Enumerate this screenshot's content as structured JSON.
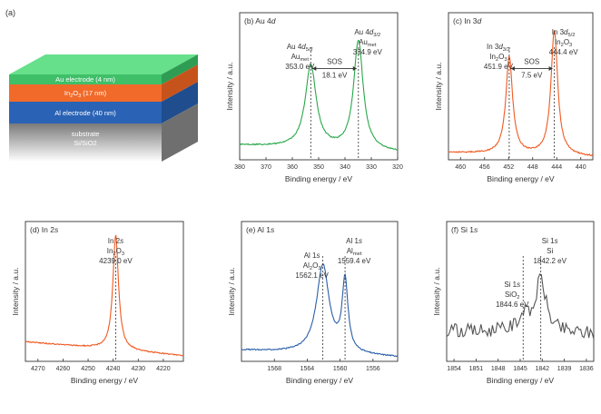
{
  "schematic": {
    "panel_label": "(a)",
    "layers": [
      {
        "label": "Au electrode (4 nm)",
        "front": "#3fbf68",
        "top": "#66e08a",
        "side": "#2e9c52"
      },
      {
        "label": "In2O3 (17 nm)",
        "label_main": "In",
        "label_sub": "2",
        "label_mid": "O",
        "label_sub2": "3",
        "label_tail": " (17 nm)",
        "front": "#f26a2a",
        "side": "#c7531c"
      },
      {
        "label": "Al electrode (40 nm)",
        "front": "#2a63b5",
        "side": "#1f4d8e"
      },
      {
        "label": "substrate",
        "label2": "Si/SiO2",
        "front": "#9a9a9a",
        "side": "#6f6f6f"
      }
    ]
  },
  "chart_data": [
    {
      "id": "b",
      "type": "line",
      "title": "(b) Au 4d",
      "xlabel": "Binding energy / eV",
      "ylabel": "Intensity / a.u.",
      "xlim": [
        380,
        320
      ],
      "ylim": [
        0,
        1
      ],
      "xticks": [
        380,
        370,
        360,
        350,
        340,
        330,
        320
      ],
      "color": "#2aa84a",
      "peaks": [
        [
          353.0,
          0.56,
          3.0
        ],
        [
          334.9,
          0.74,
          2.6
        ]
      ],
      "background": [
        0.1,
        0.05
      ],
      "markers": [
        {
          "x": 353.0,
          "lines": [
            "Au 4d5/2",
            "Aumet",
            "353.0 eV"
          ]
        },
        {
          "x": 334.9,
          "lines": [
            "Au 4d3/2",
            "Aumet",
            "334.9 eV"
          ]
        }
      ],
      "sos": {
        "label": "SOS",
        "value": "18.1 eV",
        "x1": 353.0,
        "x2": 334.9
      }
    },
    {
      "id": "c",
      "type": "line",
      "title": "(c) In 3d",
      "xlabel": "Binding energy / eV",
      "ylabel": "Intensity / a.u.",
      "xlim": [
        462,
        438
      ],
      "ylim": [
        0,
        1
      ],
      "xticks": [
        460,
        456,
        452,
        448,
        444,
        440
      ],
      "color": "#f05a22",
      "peaks": [
        [
          451.9,
          0.66,
          0.8
        ],
        [
          444.4,
          0.85,
          0.8
        ]
      ],
      "background": [
        0.05,
        0.02
      ],
      "markers": [
        {
          "x": 451.9,
          "lines": [
            "In 3d3/2",
            "In2O3",
            "451.9 eV"
          ]
        },
        {
          "x": 444.4,
          "lines": [
            "In 3d5/2",
            "In2O3",
            "444.4 eV"
          ]
        }
      ],
      "sos": {
        "label": "SOS",
        "value": "7.5 eV",
        "x1": 451.9,
        "x2": 444.4
      }
    },
    {
      "id": "d",
      "type": "line",
      "title": "(d) In 2s",
      "xlabel": "Binding energy / eV",
      "ylabel": "Intensity / a.u.",
      "xlim": [
        4275,
        4212
      ],
      "ylim": [
        0,
        1
      ],
      "xticks": [
        4270,
        4260,
        4250,
        4240,
        4230,
        4220
      ],
      "color": "#f05a22",
      "peaks": [
        [
          4239.0,
          0.82,
          1.6
        ]
      ],
      "background": [
        0.14,
        0.04
      ],
      "markers": [
        {
          "x": 4239.0,
          "lines": [
            "In 2s",
            "In2O3",
            "4239.0 eV"
          ]
        }
      ]
    },
    {
      "id": "e",
      "type": "line",
      "title": "(e) Al 1s",
      "xlabel": "Binding energy / eV",
      "ylabel": "Intensity / a.u.",
      "xlim": [
        1572,
        1553
      ],
      "ylim": [
        0,
        1
      ],
      "xticks": [
        1568,
        1564,
        1560,
        1556
      ],
      "color": "#2a5ea8",
      "peaks": [
        [
          1562.1,
          0.63,
          1.1
        ],
        [
          1559.4,
          0.51,
          0.5
        ]
      ],
      "background": [
        0.08,
        0.03
      ],
      "markers": [
        {
          "x": 1562.1,
          "lines": [
            "Al 1s",
            "Al2O3",
            "1562.1 eV"
          ]
        },
        {
          "x": 1559.4,
          "lines": [
            "Al 1s",
            "Almet",
            "1559.4 eV"
          ]
        }
      ]
    },
    {
      "id": "f",
      "type": "line",
      "title": "(f) Si 1s",
      "xlabel": "Binding energy / eV",
      "ylabel": "Intensity / a.u.",
      "xlim": [
        1855,
        1835
      ],
      "ylim": [
        0,
        1
      ],
      "xticks": [
        1854,
        1851,
        1848,
        1845,
        1842,
        1839,
        1836
      ],
      "color": "#555555",
      "peaks": [
        [
          1844.6,
          0.1,
          1.2
        ],
        [
          1842.2,
          0.38,
          1.0
        ]
      ],
      "background": [
        0.22,
        0.2
      ],
      "noise": 0.1,
      "markers": [
        {
          "x": 1844.6,
          "lines": [
            "Si 1s",
            "SiO2",
            "1844.6 eV"
          ]
        },
        {
          "x": 1842.2,
          "lines": [
            "Si 1s",
            "Si",
            "1842.2 eV"
          ]
        }
      ]
    }
  ]
}
